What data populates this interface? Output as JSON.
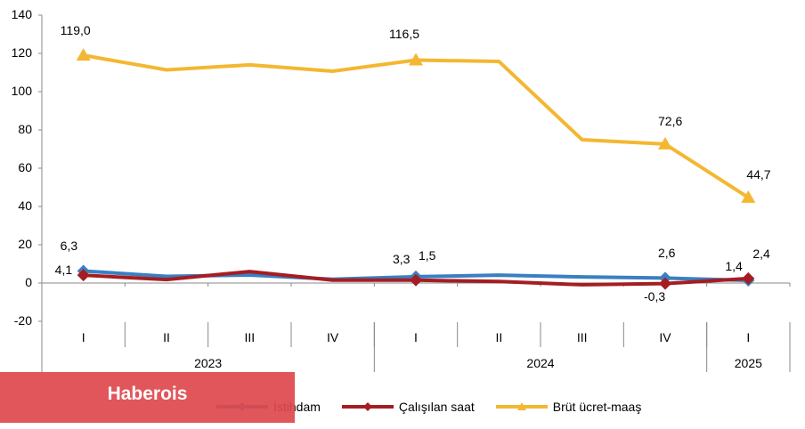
{
  "chart_data": {
    "type": "line",
    "title": "",
    "xlabel": "",
    "ylabel": "",
    "ylim": [
      -20,
      140
    ],
    "yticks": [
      -20,
      0,
      20,
      40,
      60,
      80,
      100,
      120,
      140
    ],
    "ytick_labels": [
      "-20",
      "0",
      "20",
      "40",
      "60",
      "80",
      "100",
      "120",
      "140"
    ],
    "grid": false,
    "legend_position": "bottom",
    "categories": [
      "I",
      "II",
      "III",
      "IV",
      "I",
      "II",
      "III",
      "IV",
      "I"
    ],
    "years": [
      {
        "label": "2023",
        "span": 4
      },
      {
        "label": "2024",
        "span": 4
      },
      {
        "label": "2025",
        "span": 1
      }
    ],
    "series": [
      {
        "name": "İstihdam",
        "color": "#3a7fc1",
        "marker": "diamond",
        "values": [
          6.3,
          3.5,
          4.2,
          2.0,
          3.3,
          4.1,
          3.2,
          2.6,
          1.4
        ],
        "labels": [
          "6,3",
          "",
          "",
          "",
          "3,3",
          "",
          "",
          "2,6",
          "1,4"
        ]
      },
      {
        "name": "Çalışılan saat",
        "color": "#a51d22",
        "marker": "diamond",
        "values": [
          4.1,
          1.8,
          6.0,
          1.5,
          1.5,
          0.8,
          -0.9,
          -0.3,
          2.4
        ],
        "labels": [
          "4,1",
          "",
          "",
          "",
          "1,5",
          "",
          "",
          "-0,3",
          "2,4"
        ]
      },
      {
        "name": "Brüt ücret-maaş",
        "color": "#f4b731",
        "marker": "triangle",
        "values": [
          119.0,
          111.4,
          114.0,
          110.7,
          116.5,
          115.8,
          74.9,
          72.6,
          44.7
        ],
        "labels": [
          "119,0",
          "",
          "",
          "",
          "116,5",
          "",
          "",
          "72,6",
          "44,7"
        ]
      }
    ]
  },
  "legend": {
    "items": [
      {
        "label": "İstihdam",
        "color": "#3a7fc1"
      },
      {
        "label": "Çalışılan saat",
        "color": "#a51d22"
      },
      {
        "label": "Brüt ücret-maaş",
        "color": "#f4b731"
      }
    ]
  },
  "watermark": {
    "text": "Haberois",
    "color": "#de484c"
  }
}
